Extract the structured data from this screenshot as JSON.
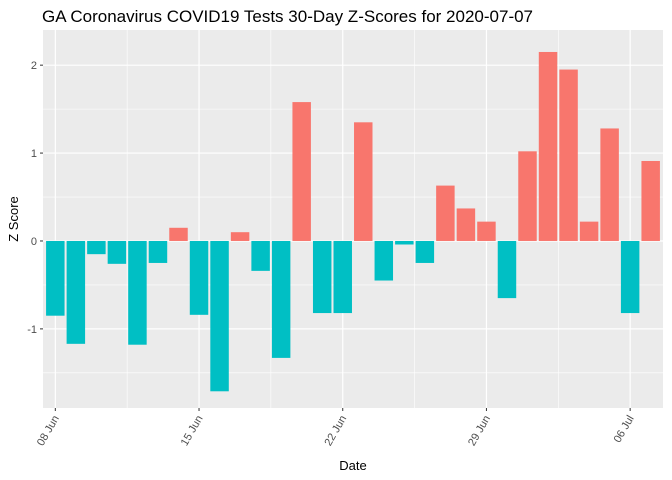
{
  "chart_data": {
    "type": "bar",
    "title": "GA Coronavirus COVID19 Tests 30-Day Z-Scores for 2020-07-07",
    "xlabel": "Date",
    "ylabel": "Z Score",
    "x_tick_labels": [
      "08 Jun",
      "15 Jun",
      "22 Jun",
      "29 Jun",
      "06 Jul"
    ],
    "y_tick_labels": [
      "-1",
      "0",
      "1",
      "2"
    ],
    "ylim": [
      -1.9,
      2.4
    ],
    "grid": true,
    "legend": "none",
    "colors": {
      "positive": "#F8766D",
      "negative": "#00BFC4",
      "panel": "#EBEBEB",
      "grid": "#FFFFFF"
    },
    "dates": [
      "2020-06-08",
      "2020-06-09",
      "2020-06-10",
      "2020-06-11",
      "2020-06-12",
      "2020-06-13",
      "2020-06-14",
      "2020-06-15",
      "2020-06-16",
      "2020-06-17",
      "2020-06-18",
      "2020-06-19",
      "2020-06-20",
      "2020-06-21",
      "2020-06-22",
      "2020-06-23",
      "2020-06-24",
      "2020-06-25",
      "2020-06-26",
      "2020-06-27",
      "2020-06-28",
      "2020-06-29",
      "2020-06-30",
      "2020-07-01",
      "2020-07-02",
      "2020-07-03",
      "2020-07-04",
      "2020-07-05",
      "2020-07-06",
      "2020-07-07"
    ],
    "values": [
      -0.85,
      -1.17,
      -0.15,
      -0.26,
      -1.18,
      -0.25,
      0.15,
      -0.84,
      -1.71,
      0.1,
      -0.34,
      -1.33,
      1.58,
      -0.82,
      -0.82,
      1.35,
      -0.45,
      -0.04,
      -0.25,
      0.63,
      0.37,
      0.22,
      -0.65,
      1.02,
      2.15,
      1.95,
      0.22,
      1.28,
      -0.82,
      0.91
    ]
  }
}
